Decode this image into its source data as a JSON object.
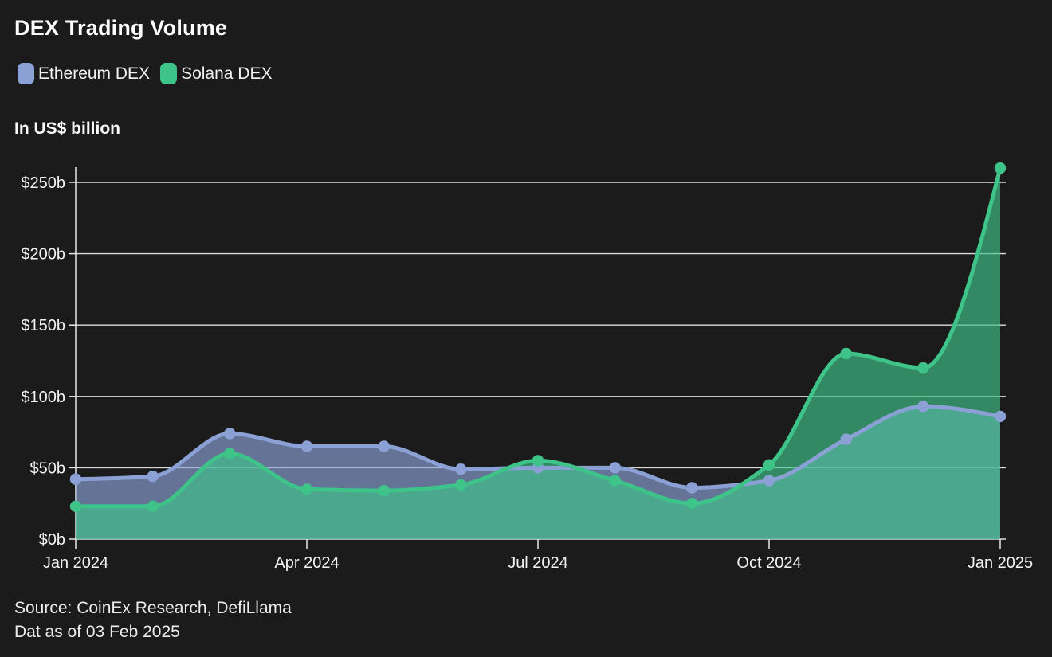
{
  "page": {
    "title": "DEX Trading Volume",
    "subtitle": "In US$ billion",
    "source_line1": "Source: CoinEx Research, DefiLlama",
    "source_line2": "Dat as of 03 Feb 2025",
    "background_color": "#1b1b1b",
    "text_color": "#f4f4f4",
    "grid_color": "#dcdcdc",
    "axis_color": "#e8e8e8"
  },
  "chart_data": {
    "type": "area",
    "title": "DEX Trading Volume",
    "ylabel": "In US$ billion",
    "xlabel": "",
    "grid": true,
    "legend_position": "top-left",
    "x": [
      "Jan 2024",
      "Feb 2024",
      "Mar 2024",
      "Apr 2024",
      "May 2024",
      "Jun 2024",
      "Jul 2024",
      "Aug 2024",
      "Sep 2024",
      "Oct 2024",
      "Nov 2024",
      "Dec 2024",
      "Jan 2025"
    ],
    "x_tick_labels": [
      "Jan 2024",
      "Apr 2024",
      "Jul 2024",
      "Oct 2024",
      "Jan 2025"
    ],
    "y_ticks": [
      0,
      50,
      100,
      150,
      200,
      250
    ],
    "y_tick_labels": [
      "$0b",
      "$50b",
      "$100b",
      "$150b",
      "$200b",
      "$250b"
    ],
    "ylim": [
      0,
      250
    ],
    "series": [
      {
        "name": "Ethereum DEX",
        "color": "#8ba1d6",
        "fill": "rgba(139,161,214,0.66)",
        "values": [
          42,
          44,
          74,
          65,
          65,
          49,
          50,
          50,
          36,
          41,
          70,
          93,
          86
        ]
      },
      {
        "name": "Solana DEX",
        "color": "#3ec389",
        "fill": "rgba(62,195,137,0.66)",
        "values": [
          23,
          23,
          60,
          35,
          34,
          38,
          55,
          41,
          25,
          52,
          130,
          120,
          260
        ]
      }
    ]
  }
}
